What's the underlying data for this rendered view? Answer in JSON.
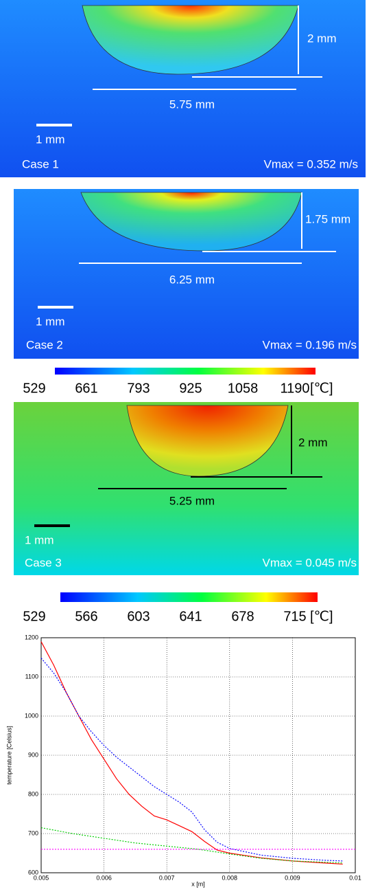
{
  "panels": [
    {
      "depth_label": "2 mm",
      "width_label": "5.75 mm",
      "scale_label": "1 mm",
      "case": "Case 1",
      "vmax": "Vmax = 0.352 m/s"
    },
    {
      "depth_label": "1.75 mm",
      "width_label": "6.25 mm",
      "scale_label": "1 mm",
      "case": "Case 2",
      "vmax": "Vmax = 0.196 m/s"
    },
    {
      "depth_label": "2 mm",
      "width_label": "5.25 mm",
      "scale_label": "1 mm",
      "case": "Case 3",
      "vmax": "Vmax = 0.045 m/s"
    }
  ],
  "colorbars": [
    {
      "ticks": [
        "529",
        "661",
        "793",
        "925",
        "1058",
        "1190"
      ],
      "unit": "[℃]"
    },
    {
      "ticks": [
        "529",
        "566",
        "603",
        "641",
        "678",
        "715"
      ],
      "unit": "[℃]"
    }
  ],
  "chart_data": {
    "type": "line",
    "xlabel": "x [m]",
    "ylabel": "temperature [Celsius]",
    "xlim": [
      0.005,
      0.01
    ],
    "ylim": [
      600,
      1200
    ],
    "xticks": [
      0.005,
      0.006,
      0.007,
      0.008,
      0.009,
      0.01
    ],
    "yticks": [
      600,
      700,
      800,
      900,
      1000,
      1100,
      1200
    ],
    "grid": true,
    "series": [
      {
        "color": "#ff0000",
        "x": [
          0.005,
          0.0052,
          0.0054,
          0.0056,
          0.0058,
          0.006,
          0.0062,
          0.0064,
          0.0066,
          0.0068,
          0.007,
          0.0072,
          0.0074,
          0.0076,
          0.0078,
          0.008,
          0.0085,
          0.009,
          0.0095,
          0.0098
        ],
        "values": [
          1190,
          1130,
          1060,
          1000,
          940,
          890,
          840,
          800,
          770,
          745,
          735,
          720,
          705,
          680,
          658,
          650,
          638,
          630,
          625,
          622
        ]
      },
      {
        "color": "#0000ff",
        "x": [
          0.005,
          0.0052,
          0.0054,
          0.0056,
          0.0058,
          0.006,
          0.0062,
          0.0064,
          0.0066,
          0.0068,
          0.007,
          0.0072,
          0.0074,
          0.0076,
          0.0078,
          0.008,
          0.0085,
          0.009,
          0.0095,
          0.0098
        ],
        "values": [
          1148,
          1110,
          1060,
          1000,
          960,
          925,
          895,
          870,
          845,
          820,
          800,
          780,
          755,
          710,
          678,
          662,
          645,
          637,
          632,
          630
        ]
      },
      {
        "color": "#00cc00",
        "x": [
          0.005,
          0.0055,
          0.006,
          0.0065,
          0.007,
          0.0075,
          0.008,
          0.0085,
          0.009,
          0.0095,
          0.0098
        ],
        "values": [
          715,
          700,
          688,
          676,
          668,
          660,
          648,
          637,
          630,
          627,
          625
        ]
      },
      {
        "color": "#ff00ff",
        "x": [
          0.005,
          0.01
        ],
        "values": [
          660,
          660
        ]
      }
    ]
  }
}
